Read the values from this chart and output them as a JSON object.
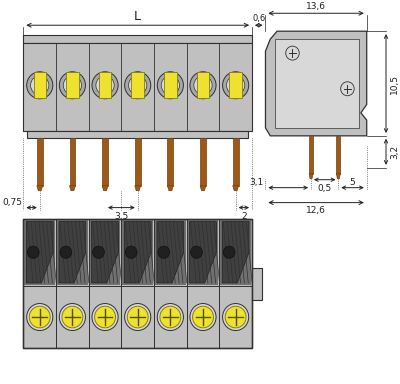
{
  "bg_color": "#ffffff",
  "gray_color": "#c0c0c0",
  "gray_light": "#d8d8d8",
  "gray_dark": "#a0a0a0",
  "yellow_color": "#f0e030",
  "brown_color": "#a05818",
  "brown_dark": "#704010",
  "line_color": "#303030",
  "dim_color": "#202020",
  "n_poles": 7,
  "dims": {
    "L_label": "L",
    "dim_06": "0,6",
    "dim_136": "13,6",
    "dim_105": "10,5",
    "dim_32": "3,2",
    "dim_31": "3,1",
    "dim_05": "0,5",
    "dim_5": "5",
    "dim_126": "12,6",
    "dim_075": "0,75",
    "dim_35": "3,5",
    "dim_2": "2"
  }
}
